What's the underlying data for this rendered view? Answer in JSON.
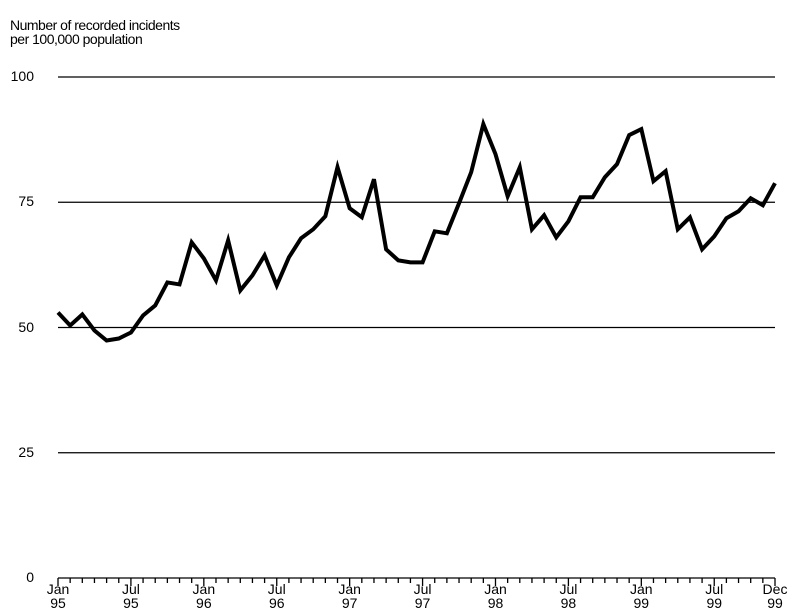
{
  "chart_data": {
    "type": "line",
    "y_label": "Number of recorded incidents\nper 100,000 population",
    "categories": [
      "Jan\n95",
      null,
      null,
      null,
      null,
      null,
      "Jul\n95",
      null,
      null,
      null,
      null,
      null,
      "Jan\n96",
      null,
      null,
      null,
      null,
      null,
      "Jul\n96",
      null,
      null,
      null,
      null,
      null,
      "Jan\n97",
      null,
      null,
      null,
      null,
      null,
      "Jul\n97",
      null,
      null,
      null,
      null,
      null,
      "Jan\n98",
      null,
      null,
      null,
      null,
      null,
      "Jul\n98",
      null,
      null,
      null,
      null,
      null,
      "Jan\n99",
      null,
      null,
      null,
      null,
      null,
      "Jul\n99",
      null,
      null,
      null,
      null,
      "Dec\n99"
    ],
    "series": [
      {
        "color": "#000000",
        "values": [
          53,
          50.4,
          52.6,
          49.4,
          47.4,
          47.8,
          49,
          52.4,
          54.4,
          59,
          58.6,
          67,
          63.8,
          59.4,
          67.4,
          57.4,
          60.4,
          64.4,
          58.4,
          64,
          67.8,
          69.6,
          72.2,
          82,
          73.8,
          72,
          79.6,
          65.6,
          63.4,
          63,
          63,
          69.2,
          68.8,
          74.8,
          81,
          90.6,
          84.6,
          76.2,
          82,
          69.6,
          72.4,
          68,
          71.2,
          76,
          76,
          80,
          82.6,
          88.4,
          89.6,
          79.2,
          81.2,
          69.6,
          72,
          65.6,
          68.2,
          71.8,
          73.2,
          75.8,
          74.4,
          78.8
        ]
      }
    ],
    "ylim": [
      0,
      100
    ],
    "yticks": [
      0,
      25,
      50,
      75,
      100
    ],
    "grid": true
  }
}
